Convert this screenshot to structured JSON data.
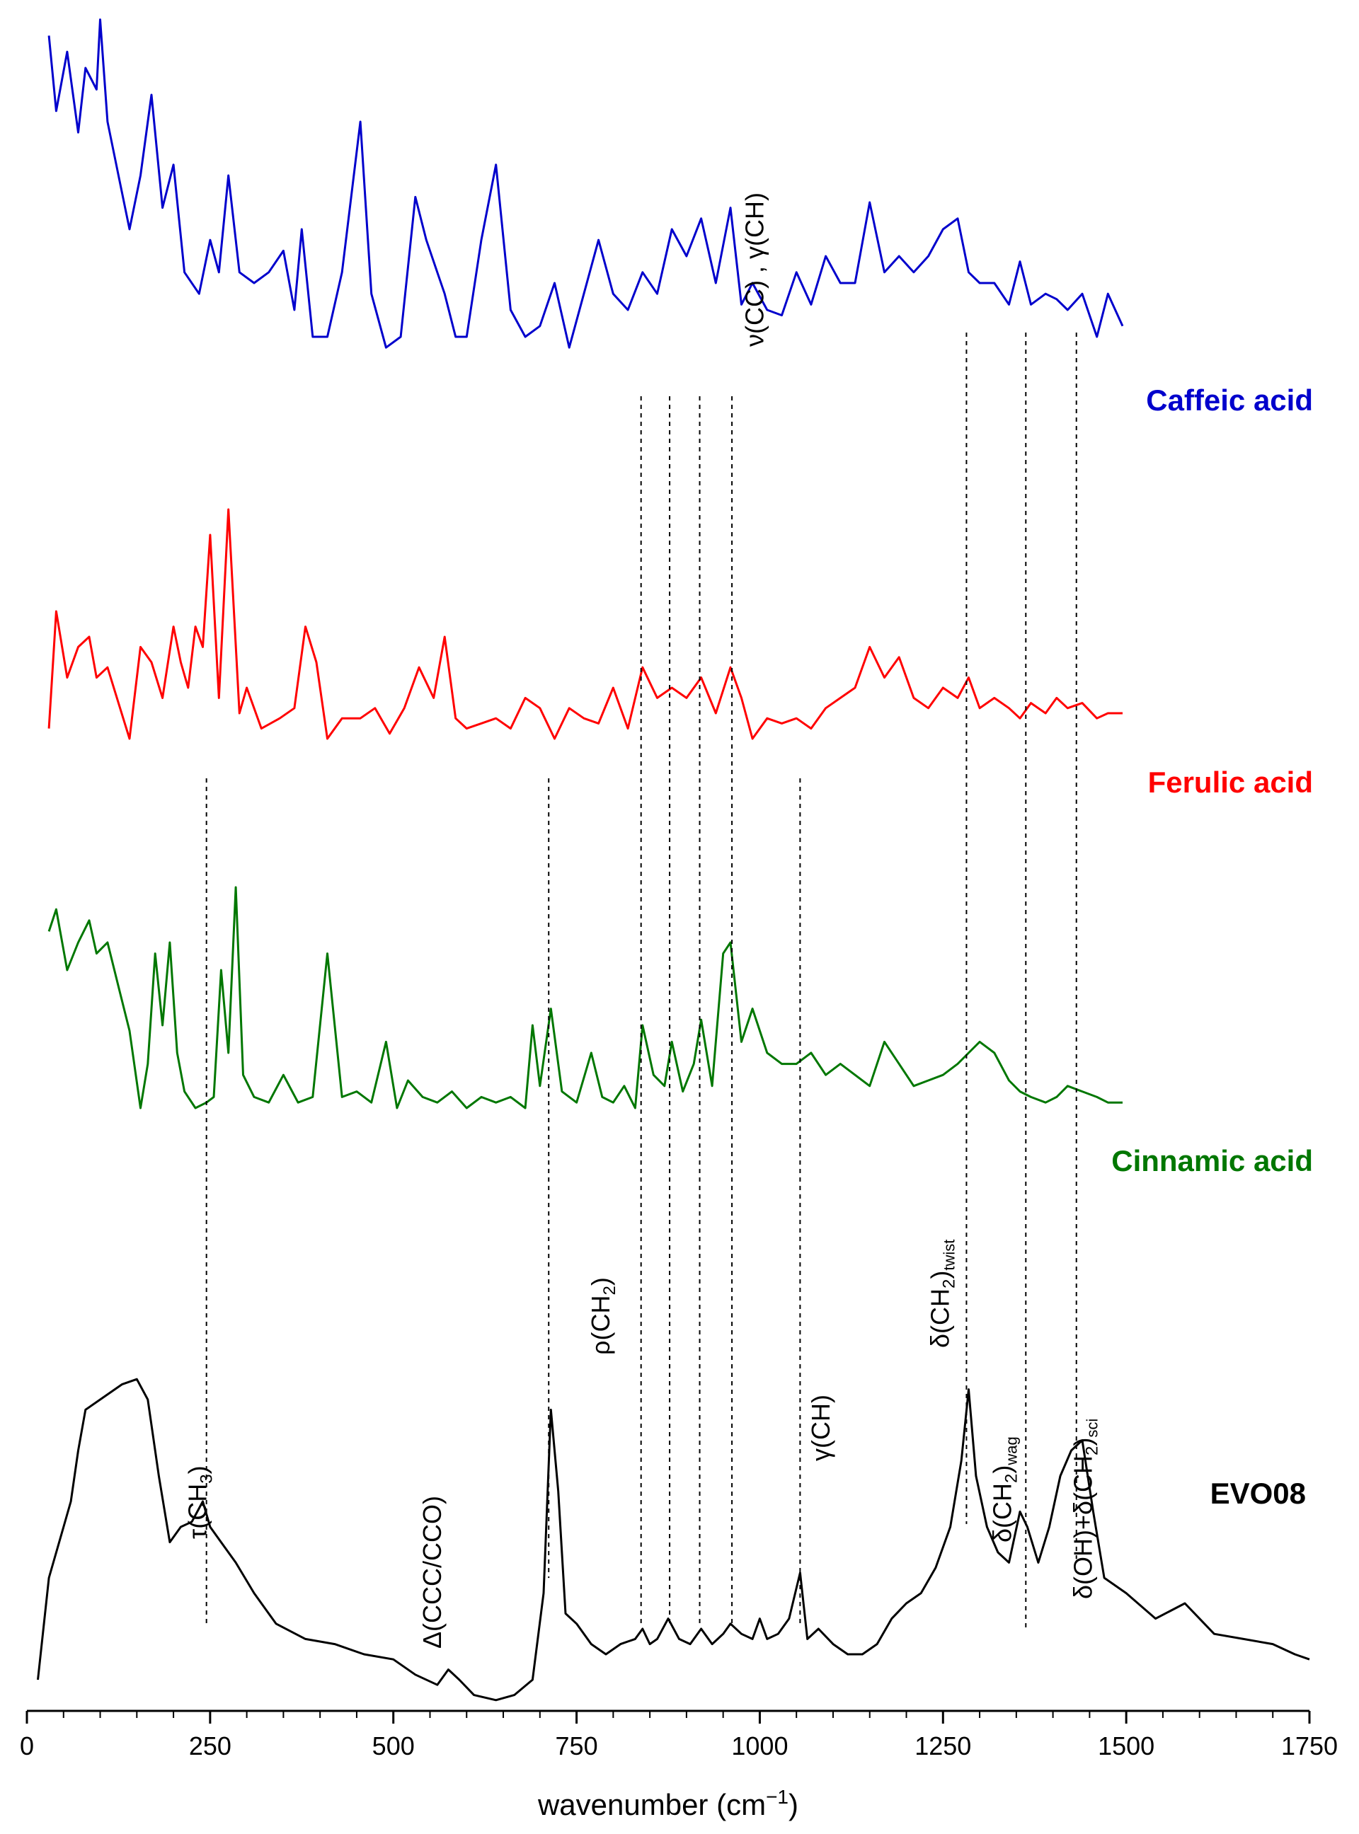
{
  "chart_data": {
    "type": "line",
    "xlabel_main": "wavenumber (cm",
    "xlabel_sup": "−1",
    "xlabel_close": ")",
    "ylabel": "",
    "xlim": [
      0,
      1750
    ],
    "x_ticks": [
      "0",
      "250",
      "500",
      "750",
      "1000",
      "1250",
      "1500",
      "1750"
    ],
    "y_axis_visible": false,
    "grid": false,
    "series": [
      {
        "name": "Caffeic acid",
        "color": "#0000cc",
        "label_bold": true,
        "x": [
          30,
          40,
          55,
          70,
          80,
          95,
          100,
          110,
          125,
          140,
          155,
          170,
          185,
          200,
          215,
          235,
          250,
          262,
          275,
          290,
          310,
          330,
          350,
          365,
          375,
          390,
          410,
          430,
          455,
          470,
          490,
          510,
          530,
          545,
          560,
          570,
          585,
          600,
          620,
          640,
          660,
          680,
          700,
          720,
          740,
          760,
          780,
          800,
          820,
          840,
          860,
          880,
          900,
          920,
          940,
          960,
          975,
          990,
          1010,
          1030,
          1050,
          1070,
          1090,
          1110,
          1130,
          1150,
          1170,
          1190,
          1210,
          1230,
          1250,
          1270,
          1285,
          1300,
          1320,
          1340,
          1355,
          1370,
          1390,
          1405,
          1420,
          1440,
          1460,
          1475,
          1495
        ],
        "y": [
          96,
          82,
          93,
          78,
          90,
          86,
          99,
          80,
          70,
          60,
          70,
          85,
          64,
          72,
          52,
          48,
          58,
          52,
          70,
          52,
          50,
          52,
          56,
          45,
          60,
          40,
          40,
          52,
          80,
          48,
          38,
          40,
          66,
          58,
          52,
          48,
          40,
          40,
          58,
          72,
          45,
          40,
          42,
          50,
          38,
          48,
          58,
          48,
          45,
          52,
          48,
          60,
          55,
          62,
          50,
          64,
          46,
          50,
          45,
          44,
          52,
          46,
          55,
          50,
          50,
          65,
          52,
          55,
          52,
          55,
          60,
          62,
          52,
          50,
          50,
          46,
          54,
          46,
          48,
          47,
          45,
          48,
          40,
          48,
          42
        ]
      },
      {
        "name": "Ferulic acid",
        "color": "#ff0000",
        "label_bold": true,
        "x": [
          30,
          40,
          55,
          70,
          85,
          95,
          110,
          125,
          140,
          155,
          170,
          185,
          200,
          210,
          220,
          230,
          240,
          250,
          262,
          275,
          290,
          300,
          320,
          345,
          365,
          380,
          395,
          410,
          430,
          455,
          475,
          495,
          515,
          535,
          555,
          570,
          585,
          600,
          620,
          640,
          660,
          680,
          700,
          720,
          740,
          760,
          780,
          800,
          820,
          840,
          860,
          880,
          900,
          920,
          940,
          960,
          975,
          990,
          1010,
          1030,
          1050,
          1070,
          1090,
          1110,
          1130,
          1150,
          1170,
          1190,
          1210,
          1230,
          1250,
          1270,
          1285,
          1300,
          1320,
          1340,
          1355,
          1370,
          1390,
          1405,
          1420,
          1440,
          1460,
          1475,
          1495
        ],
        "y": [
          32,
          55,
          42,
          48,
          50,
          42,
          44,
          37,
          30,
          48,
          45,
          38,
          52,
          45,
          40,
          52,
          48,
          70,
          38,
          75,
          35,
          40,
          32,
          34,
          36,
          52,
          45,
          30,
          34,
          34,
          36,
          31,
          36,
          44,
          38,
          50,
          34,
          32,
          33,
          34,
          32,
          38,
          36,
          30,
          36,
          34,
          33,
          40,
          32,
          44,
          38,
          40,
          38,
          42,
          35,
          44,
          38,
          30,
          34,
          33,
          34,
          32,
          36,
          38,
          40,
          48,
          42,
          46,
          38,
          36,
          40,
          38,
          42,
          36,
          38,
          36,
          34,
          37,
          35,
          38,
          36,
          37,
          34,
          35,
          35
        ]
      },
      {
        "name": "Cinnamic acid",
        "color": "#007700",
        "label_bold": true,
        "x": [
          30,
          40,
          55,
          70,
          85,
          95,
          110,
          125,
          140,
          155,
          165,
          175,
          185,
          195,
          205,
          215,
          230,
          245,
          255,
          265,
          275,
          285,
          295,
          310,
          330,
          350,
          370,
          390,
          410,
          430,
          450,
          470,
          490,
          505,
          520,
          540,
          560,
          580,
          600,
          620,
          640,
          660,
          680,
          690,
          700,
          715,
          730,
          750,
          770,
          785,
          800,
          815,
          830,
          840,
          855,
          870,
          880,
          895,
          910,
          920,
          935,
          950,
          960,
          975,
          990,
          1010,
          1030,
          1050,
          1070,
          1090,
          1110,
          1130,
          1150,
          1170,
          1190,
          1210,
          1230,
          1250,
          1270,
          1285,
          1300,
          1320,
          1340,
          1355,
          1370,
          1390,
          1405,
          1420,
          1440,
          1460,
          1475,
          1495
        ],
        "y": [
          62,
          66,
          55,
          60,
          64,
          58,
          60,
          52,
          44,
          30,
          38,
          58,
          45,
          60,
          40,
          33,
          30,
          31,
          32,
          55,
          40,
          70,
          36,
          32,
          31,
          36,
          31,
          32,
          58,
          32,
          33,
          31,
          42,
          30,
          35,
          32,
          31,
          33,
          30,
          32,
          31,
          32,
          30,
          45,
          34,
          48,
          33,
          31,
          40,
          32,
          31,
          34,
          30,
          45,
          36,
          34,
          42,
          33,
          38,
          46,
          34,
          58,
          60,
          42,
          48,
          40,
          38,
          38,
          40,
          36,
          38,
          36,
          34,
          42,
          38,
          34,
          35,
          36,
          38,
          40,
          42,
          40,
          35,
          33,
          32,
          31,
          32,
          34,
          33,
          32,
          31,
          31
        ]
      },
      {
        "name": "EVO08",
        "color": "#000000",
        "label_bold": true,
        "x": [
          15,
          30,
          50,
          60,
          70,
          80,
          100,
          130,
          150,
          165,
          180,
          195,
          210,
          225,
          240,
          250,
          265,
          285,
          310,
          340,
          380,
          420,
          460,
          500,
          530,
          560,
          575,
          590,
          610,
          640,
          665,
          690,
          705,
          715,
          725,
          735,
          750,
          770,
          790,
          810,
          830,
          840,
          850,
          860,
          875,
          890,
          905,
          920,
          935,
          950,
          960,
          975,
          990,
          1000,
          1010,
          1025,
          1040,
          1055,
          1065,
          1080,
          1100,
          1120,
          1140,
          1160,
          1180,
          1200,
          1220,
          1240,
          1260,
          1275,
          1285,
          1295,
          1310,
          1325,
          1340,
          1355,
          1365,
          1380,
          1395,
          1410,
          1425,
          1440,
          1455,
          1470,
          1500,
          1540,
          1580,
          1620,
          1660,
          1700,
          1730,
          1750
        ],
        "y": [
          5,
          25,
          35,
          40,
          50,
          58,
          60,
          63,
          64,
          60,
          45,
          32,
          35,
          36,
          40,
          35,
          32,
          28,
          22,
          16,
          13,
          12,
          10,
          9,
          6,
          4,
          7,
          5,
          2,
          1,
          2,
          5,
          22,
          58,
          42,
          18,
          16,
          12,
          10,
          12,
          13,
          15,
          12,
          13,
          17,
          13,
          12,
          15,
          12,
          14,
          16,
          14,
          13,
          17,
          13,
          14,
          17,
          26,
          13,
          15,
          12,
          10,
          10,
          12,
          17,
          20,
          22,
          27,
          35,
          48,
          62,
          45,
          35,
          30,
          28,
          38,
          35,
          28,
          35,
          45,
          50,
          52,
          38,
          25,
          22,
          17,
          20,
          14,
          13,
          12,
          10,
          9
        ]
      }
    ],
    "annotations": [
      {
        "name": "tau-ch3",
        "prefix": "τ(CH",
        "sub": "3",
        "suffix": ")",
        "x": 245
      },
      {
        "name": "delta-ccc-cco",
        "prefix": "Δ(CCC/CCO)",
        "sub": "",
        "suffix": "",
        "x": 565
      },
      {
        "name": "rho-ch2",
        "prefix": "ρ(CH",
        "sub": "2",
        "suffix": ")",
        "x": 795
      },
      {
        "name": "nu-cc-gamma-ch",
        "prefix": "ν(CC) , γ(CH)",
        "sub": "",
        "suffix": "",
        "x": 1005
      },
      {
        "name": "gamma-ch",
        "prefix": "γ(CH)",
        "sub": "",
        "suffix": "",
        "x": 1095
      },
      {
        "name": "delta-ch2-twist",
        "prefix": "δ(CH",
        "sub": "2",
        "suffix": ")",
        "sub2": "twist",
        "x": 1258
      },
      {
        "name": "delta-ch2-wag",
        "prefix": "δ(CH",
        "sub": "2",
        "suffix": ")",
        "sub2": "wag",
        "x": 1343
      },
      {
        "name": "delta-oh-delta-ch2-sci",
        "prefix": "δ(OH)+δ(CH",
        "sub": "2",
        "suffix": ")",
        "sub2": "sci",
        "x": 1453
      }
    ],
    "dashed_lines_x": [
      245,
      712,
      838,
      877,
      918,
      962,
      1055,
      1282,
      1363,
      1432
    ]
  }
}
